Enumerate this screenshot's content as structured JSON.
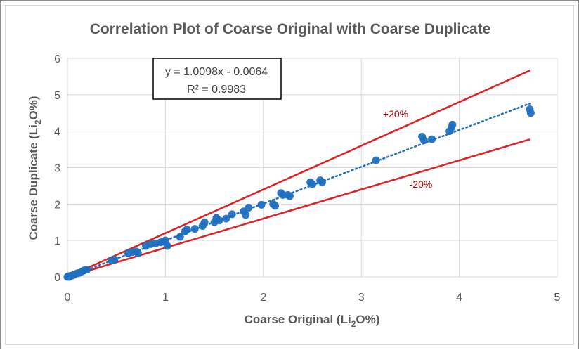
{
  "chart_data": {
    "type": "scatter",
    "title": "Correlation Plot of Coarse Original with Coarse Duplicate",
    "xlabel_main": "Coarse Original (Li",
    "xlabel_sub": "2",
    "xlabel_end": "O%)",
    "ylabel_main": "Coarse Duplicate (Li",
    "ylabel_sub": "2",
    "ylabel_end": "O%)",
    "xlim": [
      0,
      5
    ],
    "ylim": [
      0,
      6
    ],
    "x_ticks": [
      0,
      1,
      2,
      3,
      4,
      5
    ],
    "y_ticks": [
      0,
      1,
      2,
      3,
      4,
      5,
      6
    ],
    "x_tick_labels": [
      "0",
      "1",
      "2",
      "3",
      "4",
      "5"
    ],
    "y_tick_labels": [
      "0",
      "1",
      "2",
      "3",
      "4",
      "5",
      "6"
    ],
    "grid": true,
    "point_color": "#1f6fbf",
    "line_color": "#e02020",
    "trend_color": "#1f6fbf",
    "equation": "y = 1.0098x - 0.0064",
    "r_squared": "R² = 0.9983",
    "trendline": {
      "slope": 1.0098,
      "intercept": -0.0064,
      "x_range": [
        0,
        4.72
      ]
    },
    "bands": [
      {
        "label": "+20%",
        "slope": 1.2,
        "x_range": [
          0,
          4.72
        ]
      },
      {
        "label": "-20%",
        "slope": 0.8,
        "x_range": [
          0,
          4.72
        ]
      }
    ],
    "points": [
      [
        0.0,
        0.0
      ],
      [
        0.01,
        0.02
      ],
      [
        0.02,
        0.0
      ],
      [
        0.03,
        0.03
      ],
      [
        0.05,
        0.04
      ],
      [
        0.07,
        0.06
      ],
      [
        0.1,
        0.1
      ],
      [
        0.12,
        0.11
      ],
      [
        0.15,
        0.15
      ],
      [
        0.17,
        0.18
      ],
      [
        0.2,
        0.2
      ],
      [
        0.45,
        0.45
      ],
      [
        0.48,
        0.47
      ],
      [
        0.62,
        0.65
      ],
      [
        0.66,
        0.68
      ],
      [
        0.7,
        0.7
      ],
      [
        0.72,
        0.65
      ],
      [
        0.8,
        0.85
      ],
      [
        0.85,
        0.9
      ],
      [
        0.9,
        0.92
      ],
      [
        0.95,
        0.95
      ],
      [
        1.0,
        1.0
      ],
      [
        1.02,
        0.85
      ],
      [
        0.98,
        0.97
      ],
      [
        1.15,
        1.1
      ],
      [
        1.2,
        1.25
      ],
      [
        1.22,
        1.3
      ],
      [
        1.3,
        1.32
      ],
      [
        1.38,
        1.4
      ],
      [
        1.4,
        1.5
      ],
      [
        1.5,
        1.5
      ],
      [
        1.52,
        1.62
      ],
      [
        1.55,
        1.55
      ],
      [
        1.62,
        1.6
      ],
      [
        1.68,
        1.72
      ],
      [
        1.8,
        1.8
      ],
      [
        1.82,
        1.7
      ],
      [
        1.85,
        1.9
      ],
      [
        1.98,
        1.98
      ],
      [
        2.1,
        2.0
      ],
      [
        2.12,
        1.95
      ],
      [
        2.18,
        2.3
      ],
      [
        2.2,
        2.25
      ],
      [
        2.25,
        2.25
      ],
      [
        2.27,
        2.22
      ],
      [
        2.48,
        2.6
      ],
      [
        2.5,
        2.55
      ],
      [
        2.58,
        2.65
      ],
      [
        2.6,
        2.6
      ],
      [
        3.15,
        3.2
      ],
      [
        3.62,
        3.85
      ],
      [
        3.64,
        3.75
      ],
      [
        3.72,
        3.78
      ],
      [
        3.9,
        4.0
      ],
      [
        3.92,
        4.1
      ],
      [
        3.93,
        4.18
      ],
      [
        4.72,
        4.6
      ],
      [
        4.73,
        4.5
      ]
    ]
  }
}
